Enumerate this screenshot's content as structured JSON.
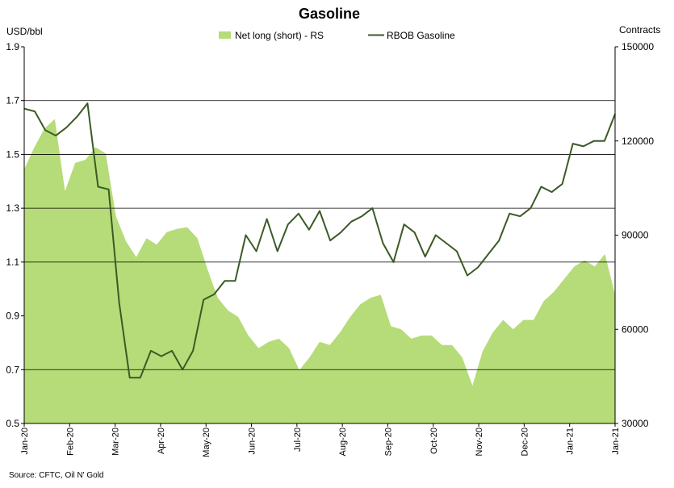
{
  "chart_data": {
    "type": "area+line",
    "title": "Gasoline",
    "ylabel_left": "USD/bbl",
    "ylabel_right": "Contracts",
    "source": "Source: CFTC, Oil N' Gold",
    "ylim_left": [
      0.5,
      1.9
    ],
    "ylim_right": [
      30000,
      150000
    ],
    "yticks_left": [
      "0.5",
      "0.7",
      "0.9",
      "1.1",
      "1.3",
      "1.5",
      "1.7",
      "1.9"
    ],
    "yticks_right": [
      "30000",
      "60000",
      "90000",
      "120000",
      "150000"
    ],
    "xticks": [
      "Jan-20",
      "Feb-20",
      "Mar-20",
      "Apr-20",
      "May-20",
      "Jun-20",
      "Jul-20",
      "Aug-20",
      "Sep-20",
      "Oct-20",
      "Nov-20",
      "Dec-20",
      "Jan-21",
      "Jan-21"
    ],
    "gridlines_left": [
      0.7,
      1.1,
      1.3,
      1.5,
      1.7
    ],
    "legend_position": "top-center",
    "colors": {
      "area": "#b5dc78",
      "line": "#3b5a26",
      "grid": "#000000"
    },
    "series": [
      {
        "name": "Net long (short) - RS",
        "axis": "right",
        "kind": "area",
        "values": [
          111000,
          118000,
          124000,
          127000,
          104000,
          113000,
          114000,
          118000,
          116000,
          96000,
          88000,
          83000,
          89000,
          87000,
          91000,
          92000,
          92500,
          89000,
          79000,
          70000,
          66000,
          64000,
          58000,
          54000,
          56000,
          57000,
          54000,
          47000,
          51000,
          56000,
          55000,
          59000,
          64000,
          68000,
          70000,
          71000,
          61000,
          60000,
          57000,
          58000,
          58000,
          55000,
          55000,
          51000,
          42000,
          53000,
          59000,
          63000,
          60000,
          63000,
          63000,
          69000,
          72000,
          76000,
          80000,
          82000,
          80000,
          84000,
          71000
        ]
      },
      {
        "name": "RBOB Gasoline",
        "axis": "left",
        "kind": "line",
        "values": [
          1.67,
          1.66,
          1.59,
          1.57,
          1.6,
          1.64,
          1.69,
          1.38,
          1.37,
          0.95,
          0.67,
          0.67,
          0.77,
          0.75,
          0.77,
          0.7,
          0.77,
          0.96,
          0.98,
          1.03,
          1.03,
          1.2,
          1.14,
          1.26,
          1.14,
          1.24,
          1.28,
          1.22,
          1.29,
          1.18,
          1.21,
          1.25,
          1.27,
          1.3,
          1.17,
          1.1,
          1.24,
          1.21,
          1.12,
          1.2,
          1.17,
          1.14,
          1.05,
          1.08,
          1.13,
          1.18,
          1.28,
          1.27,
          1.3,
          1.38,
          1.36,
          1.39,
          1.54,
          1.53,
          1.55,
          1.55,
          1.65
        ]
      }
    ]
  }
}
